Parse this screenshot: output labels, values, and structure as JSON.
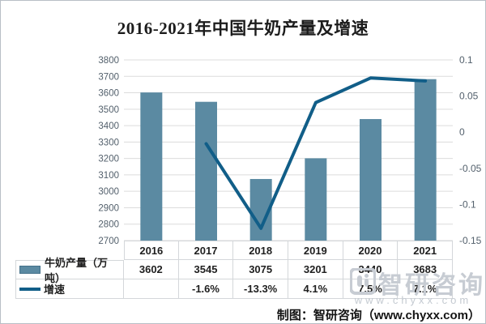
{
  "title": "2016-2021年中国牛奶产量及增速",
  "chart_data": {
    "type": "bar+line combo",
    "title": "2016-2021年中国牛奶产量及增速",
    "categories": [
      "2016",
      "2017",
      "2018",
      "2019",
      "2020",
      "2021"
    ],
    "series": [
      {
        "name": "牛奶产量（万吨）",
        "type": "bar",
        "axis": "left",
        "values": [
          3602,
          3545,
          3075,
          3201,
          3440,
          3683
        ]
      },
      {
        "name": "增速",
        "type": "line",
        "axis": "right",
        "values": [
          null,
          -0.016,
          -0.133,
          0.041,
          0.075,
          0.071
        ]
      }
    ],
    "left_axis": {
      "min": 2700,
      "max": 3800,
      "step": 100
    },
    "right_axis": {
      "min": -0.15,
      "max": 0.1,
      "step": 0.05,
      "labels": [
        "0.1",
        "0.05",
        "0",
        "-0.05",
        "-0.1",
        "-0.15"
      ]
    },
    "grid": true,
    "legend_position": "data-table-left"
  },
  "table": {
    "rows": [
      {
        "legend": "bar-swatch",
        "label": "牛奶产量（万吨）",
        "values": [
          "3602",
          "3545",
          "3075",
          "3201",
          "3440",
          "3683"
        ]
      },
      {
        "legend": "line-swatch",
        "label": "增速",
        "values": [
          "",
          "-1.6%",
          "-13.3%",
          "4.1%",
          "7.5%",
          "7.1%"
        ]
      }
    ]
  },
  "watermark": {
    "brand": "智研咨询",
    "url": "www.chyxx.com"
  },
  "credit": "制图：智研咨询（www.chyxx.com）",
  "colors": {
    "bar": "#5b8aa2",
    "bar_border": "#44718a",
    "line": "#115e88",
    "grid": "#dcdcdc",
    "axis_text": "#53606c",
    "table_border": "#d4d7da",
    "watermark": "#c7ccd3",
    "title_text": "#1c1c1c"
  }
}
